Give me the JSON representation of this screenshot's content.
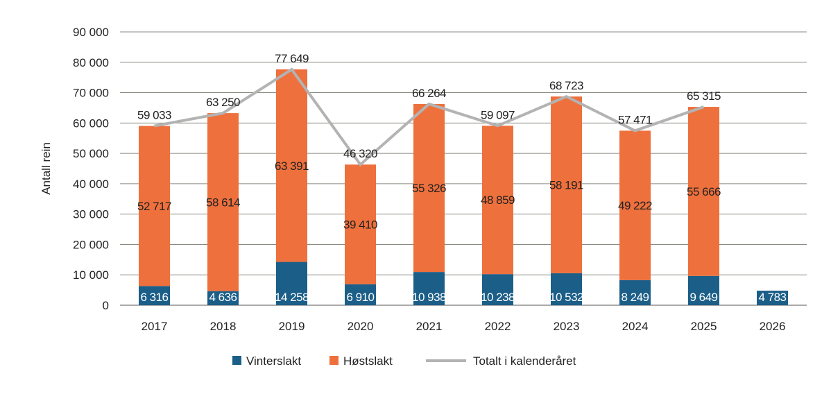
{
  "chart_data": {
    "type": "bar",
    "stacked": true,
    "title": "",
    "xlabel": "",
    "ylabel": "Antall rein",
    "ylim": [
      0,
      90000
    ],
    "yticks": [
      0,
      10000,
      20000,
      30000,
      40000,
      50000,
      60000,
      70000,
      80000,
      90000
    ],
    "ytick_labels": [
      "0",
      "10 000",
      "20 000",
      "30 000",
      "40 000",
      "50 000",
      "60 000",
      "70 000",
      "80 000",
      "90 000"
    ],
    "grid": true,
    "legend_position": "bottom",
    "categories": [
      "2017",
      "2018",
      "2019",
      "2020",
      "2021",
      "2022",
      "2023",
      "2024",
      "2025",
      "2026"
    ],
    "series": [
      {
        "name": "Vinterslakt",
        "type": "bar",
        "color": "#1b5e88",
        "values": [
          6316,
          4636,
          14258,
          6910,
          10938,
          10238,
          10532,
          8249,
          9649,
          4783
        ],
        "labels": [
          "6 316",
          "4 636",
          "14 258",
          "6 910",
          "10 938",
          "10 238",
          "10 532",
          "8 249",
          "9 649",
          "4 783"
        ]
      },
      {
        "name": "Høstslakt",
        "type": "bar",
        "color": "#ee703c",
        "values": [
          52717,
          58614,
          63391,
          39410,
          55326,
          48859,
          58191,
          49222,
          55666,
          null
        ],
        "labels": [
          "52 717",
          "58 614",
          "63 391",
          "39 410",
          "55 326",
          "48 859",
          "58 191",
          "49 222",
          "55 666",
          ""
        ]
      },
      {
        "name": "Totalt i kalenderåret",
        "type": "line",
        "color": "#b3b3b3",
        "values": [
          59033,
          63250,
          77649,
          46320,
          66264,
          59097,
          68723,
          57471,
          65315,
          null
        ],
        "labels": [
          "59 033",
          "63 250",
          "77 649",
          "46 320",
          "66 264",
          "59 097",
          "68 723",
          "57 471",
          "65 315",
          ""
        ]
      }
    ]
  }
}
